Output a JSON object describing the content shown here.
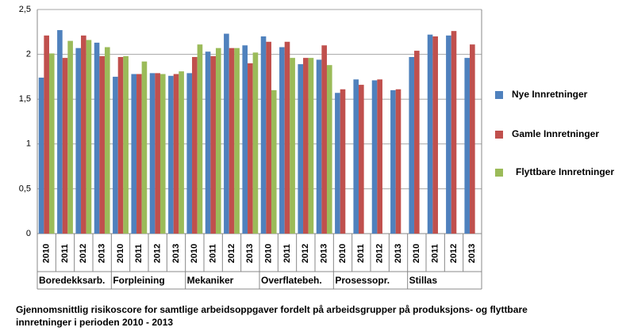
{
  "chart_data": {
    "type": "bar",
    "categories": [
      "2010",
      "2011",
      "2012",
      "2013",
      "2010",
      "2011",
      "2012",
      "2013",
      "2010",
      "2011",
      "2012",
      "2013",
      "2010",
      "2011",
      "2012",
      "2013",
      "2010",
      "2011",
      "2012",
      "2013",
      "2010",
      "2011",
      "2012",
      "2013"
    ],
    "groups": [
      "Boredekksarb.",
      "Forpleining",
      "Mekaniker",
      "Overflatebeh.",
      "Prosessopr.",
      "Stillas"
    ],
    "series": [
      {
        "name": "Nye Innretninger",
        "color": "#4f81bd",
        "values": [
          1.74,
          2.27,
          2.07,
          2.13,
          1.75,
          1.78,
          1.79,
          1.76,
          1.79,
          2.03,
          2.23,
          2.1,
          2.2,
          2.08,
          1.89,
          1.94,
          1.57,
          1.72,
          1.71,
          1.6,
          1.97,
          2.22,
          2.21,
          1.96
        ]
      },
      {
        "name": "Gamle Innretninger",
        "color": "#c0504d",
        "values": [
          2.21,
          1.96,
          2.21,
          1.98,
          1.97,
          1.78,
          1.79,
          1.78,
          1.97,
          1.98,
          2.07,
          1.9,
          2.14,
          2.14,
          1.96,
          2.1,
          1.61,
          1.66,
          1.72,
          1.61,
          2.04,
          2.2,
          2.26,
          2.11
        ]
      },
      {
        "name": "Flyttbare Innretninger",
        "color": "#9bbb59",
        "values": [
          2.01,
          2.15,
          2.16,
          2.08,
          1.98,
          1.92,
          1.78,
          1.81,
          2.11,
          2.07,
          2.07,
          2.02,
          1.6,
          1.96,
          1.96,
          1.88,
          null,
          null,
          null,
          null,
          null,
          null,
          null,
          null
        ]
      }
    ],
    "ylim": [
      0,
      2.5
    ],
    "yticks": [
      0,
      {
        "value": 0.5,
        "label": "0,5"
      },
      1,
      {
        "value": 1.5,
        "label": "1,5"
      },
      2,
      {
        "value": 2.5,
        "label": "2,5"
      }
    ],
    "grid": true,
    "legend": "right",
    "caption": [
      "Gjennomsnittlig risikoscore for samtlige arbeidsoppgaver fordelt på arbeidsgrupper på produksjons- og flyttbare",
      "innretninger i perioden 2010 - 2013"
    ]
  }
}
